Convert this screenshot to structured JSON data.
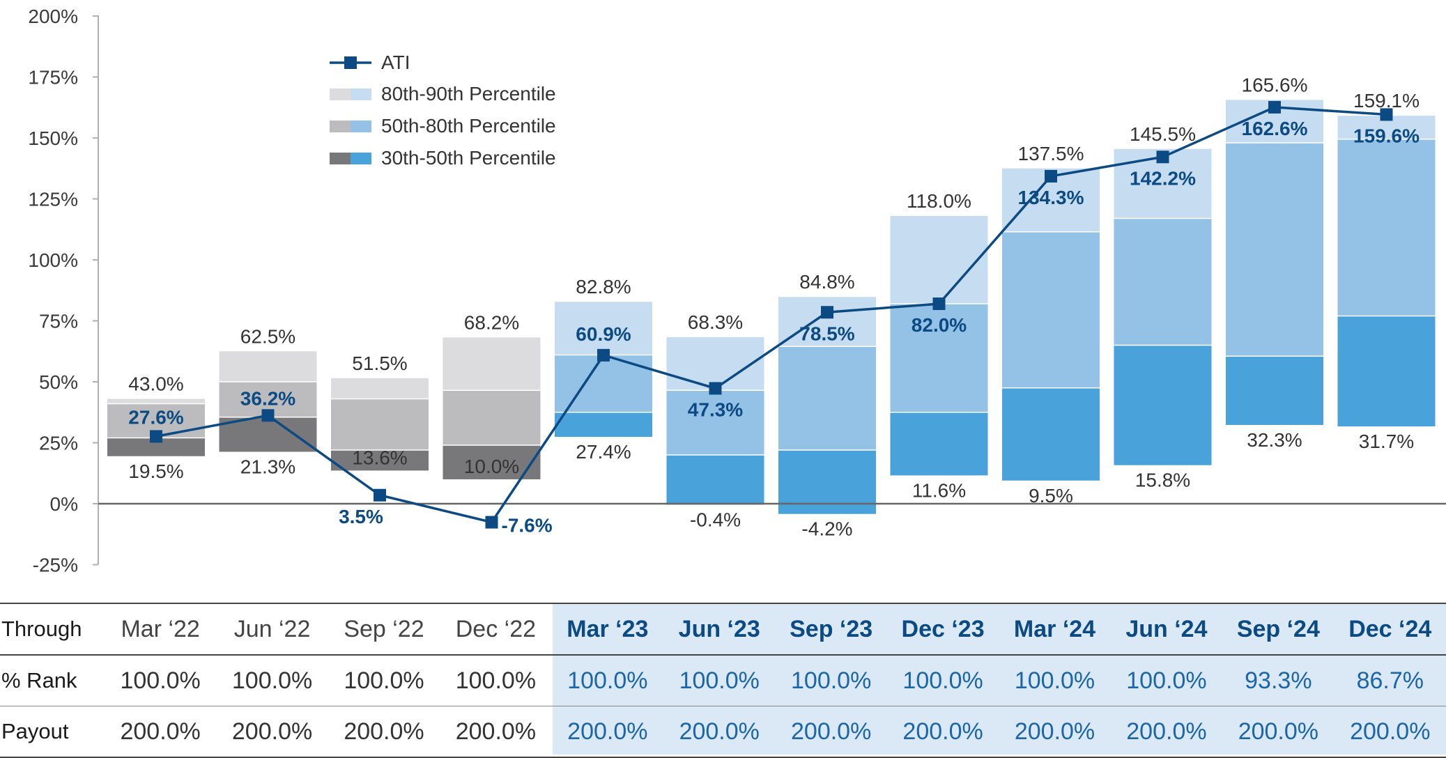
{
  "chart_data": {
    "type": "bar",
    "title": "",
    "xlabel": "",
    "ylabel": "",
    "ylim": [
      -25,
      200
    ],
    "y_ticks": [
      "200%",
      "175%",
      "150%",
      "125%",
      "100%",
      "75%",
      "50%",
      "25%",
      "0%",
      "-25%"
    ],
    "y_tick_values": [
      200,
      175,
      150,
      125,
      100,
      75,
      50,
      25,
      0,
      -25
    ],
    "categories": [
      "Mar '22",
      "Jun '22",
      "Sep '22",
      "Dec '22",
      "Mar '23",
      "Jun '23",
      "Sep '23",
      "Dec '23",
      "Mar '24",
      "Jun '24",
      "Sep '24",
      "Dec '24"
    ],
    "highlighted_from_index": 4,
    "percentile_bands": {
      "p30": [
        19.5,
        21.3,
        13.6,
        10.0,
        27.4,
        -0.4,
        -4.2,
        11.6,
        9.5,
        15.8,
        32.3,
        31.7
      ],
      "p50": [
        27.0,
        35.5,
        22.0,
        24.0,
        37.5,
        20.0,
        22.0,
        37.5,
        47.5,
        65.0,
        60.5,
        77.0
      ],
      "p80": [
        41.0,
        50.0,
        43.0,
        46.5,
        61.0,
        46.5,
        64.5,
        82.0,
        111.5,
        117.0,
        148.0,
        149.5
      ],
      "p90": [
        43.0,
        62.5,
        51.5,
        68.2,
        82.8,
        68.3,
        84.8,
        118.0,
        137.5,
        145.5,
        165.6,
        159.1
      ]
    },
    "bottom_labels": [
      "19.5%",
      "21.3%",
      "13.6%",
      "10.0%",
      "27.4%",
      "-0.4%",
      "-4.2%",
      "11.6%",
      "9.5%",
      "15.8%",
      "32.3%",
      "31.7%"
    ],
    "top_labels": [
      "43.0%",
      "62.5%",
      "51.5%",
      "68.2%",
      "82.8%",
      "68.3%",
      "84.8%",
      "118.0%",
      "137.5%",
      "145.5%",
      "165.6%",
      "159.1%"
    ],
    "series": [
      {
        "name": "ATI",
        "type": "line",
        "values": [
          27.6,
          36.2,
          3.5,
          -7.6,
          60.9,
          47.3,
          78.5,
          82.0,
          134.3,
          142.2,
          162.6,
          159.6
        ],
        "labels": [
          "27.6%",
          "36.2%",
          "3.5%",
          "-7.6%",
          "60.9%",
          "47.3%",
          "78.5%",
          "82.0%",
          "134.3%",
          "142.2%",
          "162.6%",
          "159.6%"
        ]
      }
    ],
    "legend": {
      "position": "top-left",
      "items": [
        "ATI",
        "80th-90th Percentile",
        "50th-80th Percentile",
        "30th-50th Percentile"
      ]
    },
    "colors": {
      "grey": {
        "p80_90": "#dcdcde",
        "p50_80": "#bcbcbe",
        "p30_50": "#78787a"
      },
      "blue": {
        "p80_90": "#c6dcf1",
        "p50_80": "#94c1e6",
        "p30_50": "#4aa2db"
      },
      "line": "#0b4a82",
      "axis": "#b0b0b0",
      "zero_line": "#666666"
    }
  },
  "table": {
    "row_labels": [
      "Through",
      "% Rank",
      "Payout"
    ],
    "through": [
      "Mar ‘22",
      "Jun ‘22",
      "Sep ‘22",
      "Dec ‘22",
      "Mar ‘23",
      "Jun ‘23",
      "Sep ‘23",
      "Dec ‘23",
      "Mar ‘24",
      "Jun ‘24",
      "Sep ‘24",
      "Dec ‘24"
    ],
    "rank": [
      "100.0%",
      "100.0%",
      "100.0%",
      "100.0%",
      "100.0%",
      "100.0%",
      "100.0%",
      "100.0%",
      "100.0%",
      "100.0%",
      "93.3%",
      "86.7%"
    ],
    "payout": [
      "200.0%",
      "200.0%",
      "200.0%",
      "200.0%",
      "200.0%",
      "200.0%",
      "200.0%",
      "200.0%",
      "200.0%",
      "200.0%",
      "200.0%",
      "200.0%"
    ]
  }
}
